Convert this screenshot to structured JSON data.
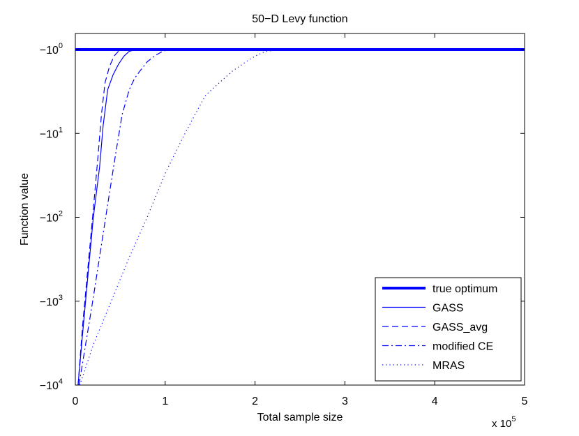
{
  "chart_data": {
    "type": "line",
    "title": "50−D Levy function",
    "xlabel": "Total sample size",
    "ylabel": "Function value",
    "x_multiplier_label": "x 10",
    "x_multiplier_exp": "5",
    "xlim": [
      0,
      5
    ],
    "ylim_log10_magnitude": [
      0,
      4
    ],
    "y_scale": "negative-log",
    "grid": false,
    "legend_position": "bottom-right",
    "x_ticks": [
      {
        "value": 0,
        "label": "0"
      },
      {
        "value": 1,
        "label": "1"
      },
      {
        "value": 2,
        "label": "2"
      },
      {
        "value": 3,
        "label": "3"
      },
      {
        "value": 4,
        "label": "4"
      },
      {
        "value": 5,
        "label": "5"
      }
    ],
    "y_ticks": [
      {
        "value": -1,
        "base": "−10",
        "exp": "0"
      },
      {
        "value": -10,
        "base": "−10",
        "exp": "1"
      },
      {
        "value": -100,
        "base": "−10",
        "exp": "2"
      },
      {
        "value": -1000,
        "base": "−10",
        "exp": "3"
      },
      {
        "value": -10000,
        "base": "−10",
        "exp": "4"
      }
    ],
    "series": [
      {
        "name": "true optimum",
        "style": "solid-thick",
        "color": "#0000ff",
        "x": [
          0,
          5
        ],
        "y": [
          -1,
          -1
        ]
      },
      {
        "name": "GASS",
        "style": "solid",
        "color": "#0000ff",
        "x": [
          0.03,
          0.08,
          0.14,
          0.2,
          0.27,
          0.31,
          0.36,
          0.42,
          0.48,
          0.54,
          0.6,
          0.66,
          0.75,
          5
        ],
        "y": [
          -10000,
          -2500,
          -500,
          -100,
          -25,
          -8,
          -3,
          -2,
          -1.5,
          -1.2,
          -1.05,
          -1.01,
          -1,
          -1
        ]
      },
      {
        "name": "GASS_avg",
        "style": "dashed",
        "color": "#0000ff",
        "x": [
          0.03,
          0.08,
          0.14,
          0.2,
          0.25,
          0.29,
          0.33,
          0.38,
          0.43,
          0.48,
          0.55,
          0.62,
          5
        ],
        "y": [
          -10000,
          -2000,
          -400,
          -80,
          -20,
          -6,
          -2.5,
          -1.6,
          -1.2,
          -1.05,
          -1.01,
          -1,
          -1
        ]
      },
      {
        "name": "modified CE",
        "style": "dashdot",
        "color": "#0000ff",
        "x": [
          0.04,
          0.12,
          0.2,
          0.28,
          0.36,
          0.44,
          0.52,
          0.6,
          0.66,
          0.72,
          0.8,
          0.88,
          0.95,
          1.0,
          1.05,
          5
        ],
        "y": [
          -10000,
          -3000,
          -900,
          -250,
          -70,
          -20,
          -6,
          -3,
          -2.2,
          -1.8,
          -1.4,
          -1.2,
          -1.08,
          -1.03,
          -1,
          -1
        ]
      },
      {
        "name": "MRAS",
        "style": "dotted",
        "color": "#0000ff",
        "x": [
          0.05,
          0.2,
          0.4,
          0.6,
          0.8,
          1.0,
          1.2,
          1.35,
          1.45,
          1.6,
          1.75,
          1.9,
          2.0,
          2.1,
          2.2,
          2.3,
          5
        ],
        "y": [
          -10000,
          -3300,
          -1000,
          -300,
          -100,
          -30,
          -11,
          -5.5,
          -3.5,
          -2.5,
          -1.8,
          -1.4,
          -1.2,
          -1.07,
          -1.02,
          -1,
          -1
        ]
      }
    ]
  }
}
